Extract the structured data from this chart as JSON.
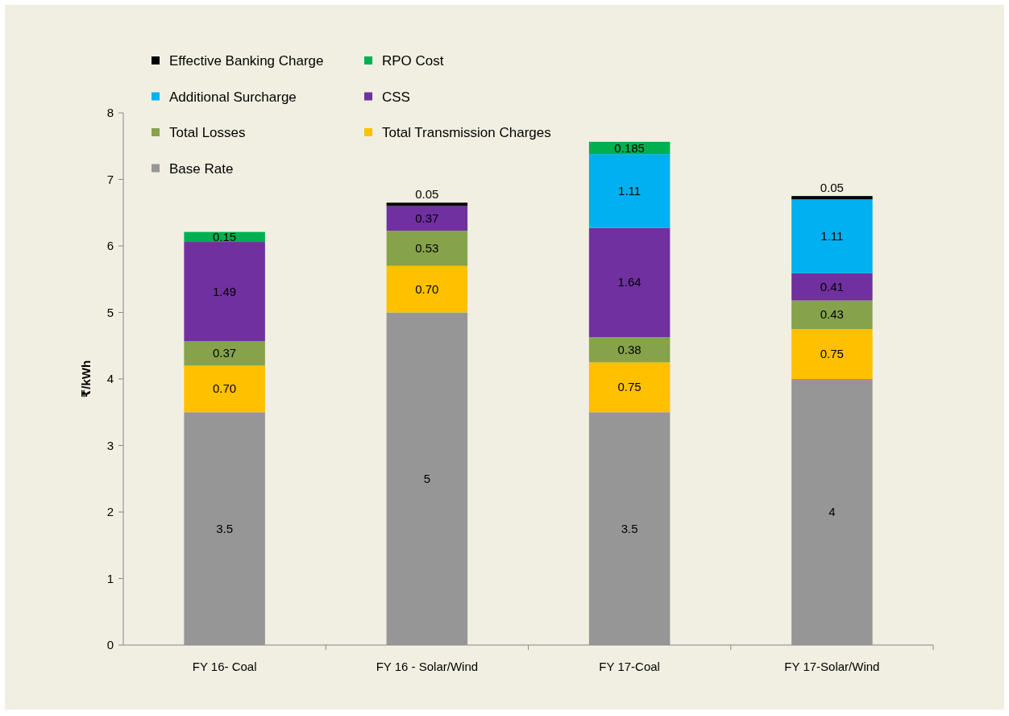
{
  "chart_data": {
    "type": "bar",
    "stacked": true,
    "ylabel": "₹/kWh",
    "categories": [
      "FY 16- Coal",
      "FY 16 - Solar/Wind",
      "FY 17-Coal",
      "FY 17-Solar/Wind"
    ],
    "ylim": [
      0,
      8
    ],
    "yticks": [
      0,
      1,
      2,
      3,
      4,
      5,
      6,
      7,
      8
    ],
    "grid": false,
    "legend": "top left",
    "data_labels": true,
    "series": [
      {
        "name": "Base Rate",
        "color": "#969696",
        "values": [
          3.5,
          5,
          3.5,
          4
        ],
        "value_labels": [
          "3.5",
          "5",
          "3.5",
          "4"
        ]
      },
      {
        "name": "Total Transmission Charges",
        "color": "#ffc000",
        "values": [
          0.7,
          0.7,
          0.75,
          0.75
        ],
        "value_labels": [
          "0.70",
          "0.70",
          "0.75",
          "0.75"
        ]
      },
      {
        "name": "Total Losses",
        "color": "#86a24b",
        "values": [
          0.37,
          0.53,
          0.38,
          0.43
        ],
        "value_labels": [
          "0.37",
          "0.53",
          "0.38",
          "0.43"
        ]
      },
      {
        "name": "CSS",
        "color": "#7030a0",
        "values": [
          1.49,
          0.37,
          1.64,
          0.41
        ],
        "value_labels": [
          "1.49",
          "0.37",
          "1.64",
          "0.41"
        ]
      },
      {
        "name": "Additional Surcharge",
        "color": "#00b0f0",
        "values": [
          null,
          null,
          1.11,
          1.11
        ],
        "value_labels": [
          null,
          null,
          "1.11",
          "1.11"
        ]
      },
      {
        "name": "RPO Cost",
        "color": "#00b050",
        "values": [
          0.15,
          null,
          0.185,
          null
        ],
        "value_labels": [
          "0.15",
          null,
          "0.185",
          null
        ]
      },
      {
        "name": "Effective Banking Charge",
        "color": "#000000",
        "values": [
          null,
          0.05,
          null,
          0.05
        ],
        "value_labels": [
          null,
          "0.05",
          null,
          "0.05"
        ]
      }
    ]
  }
}
